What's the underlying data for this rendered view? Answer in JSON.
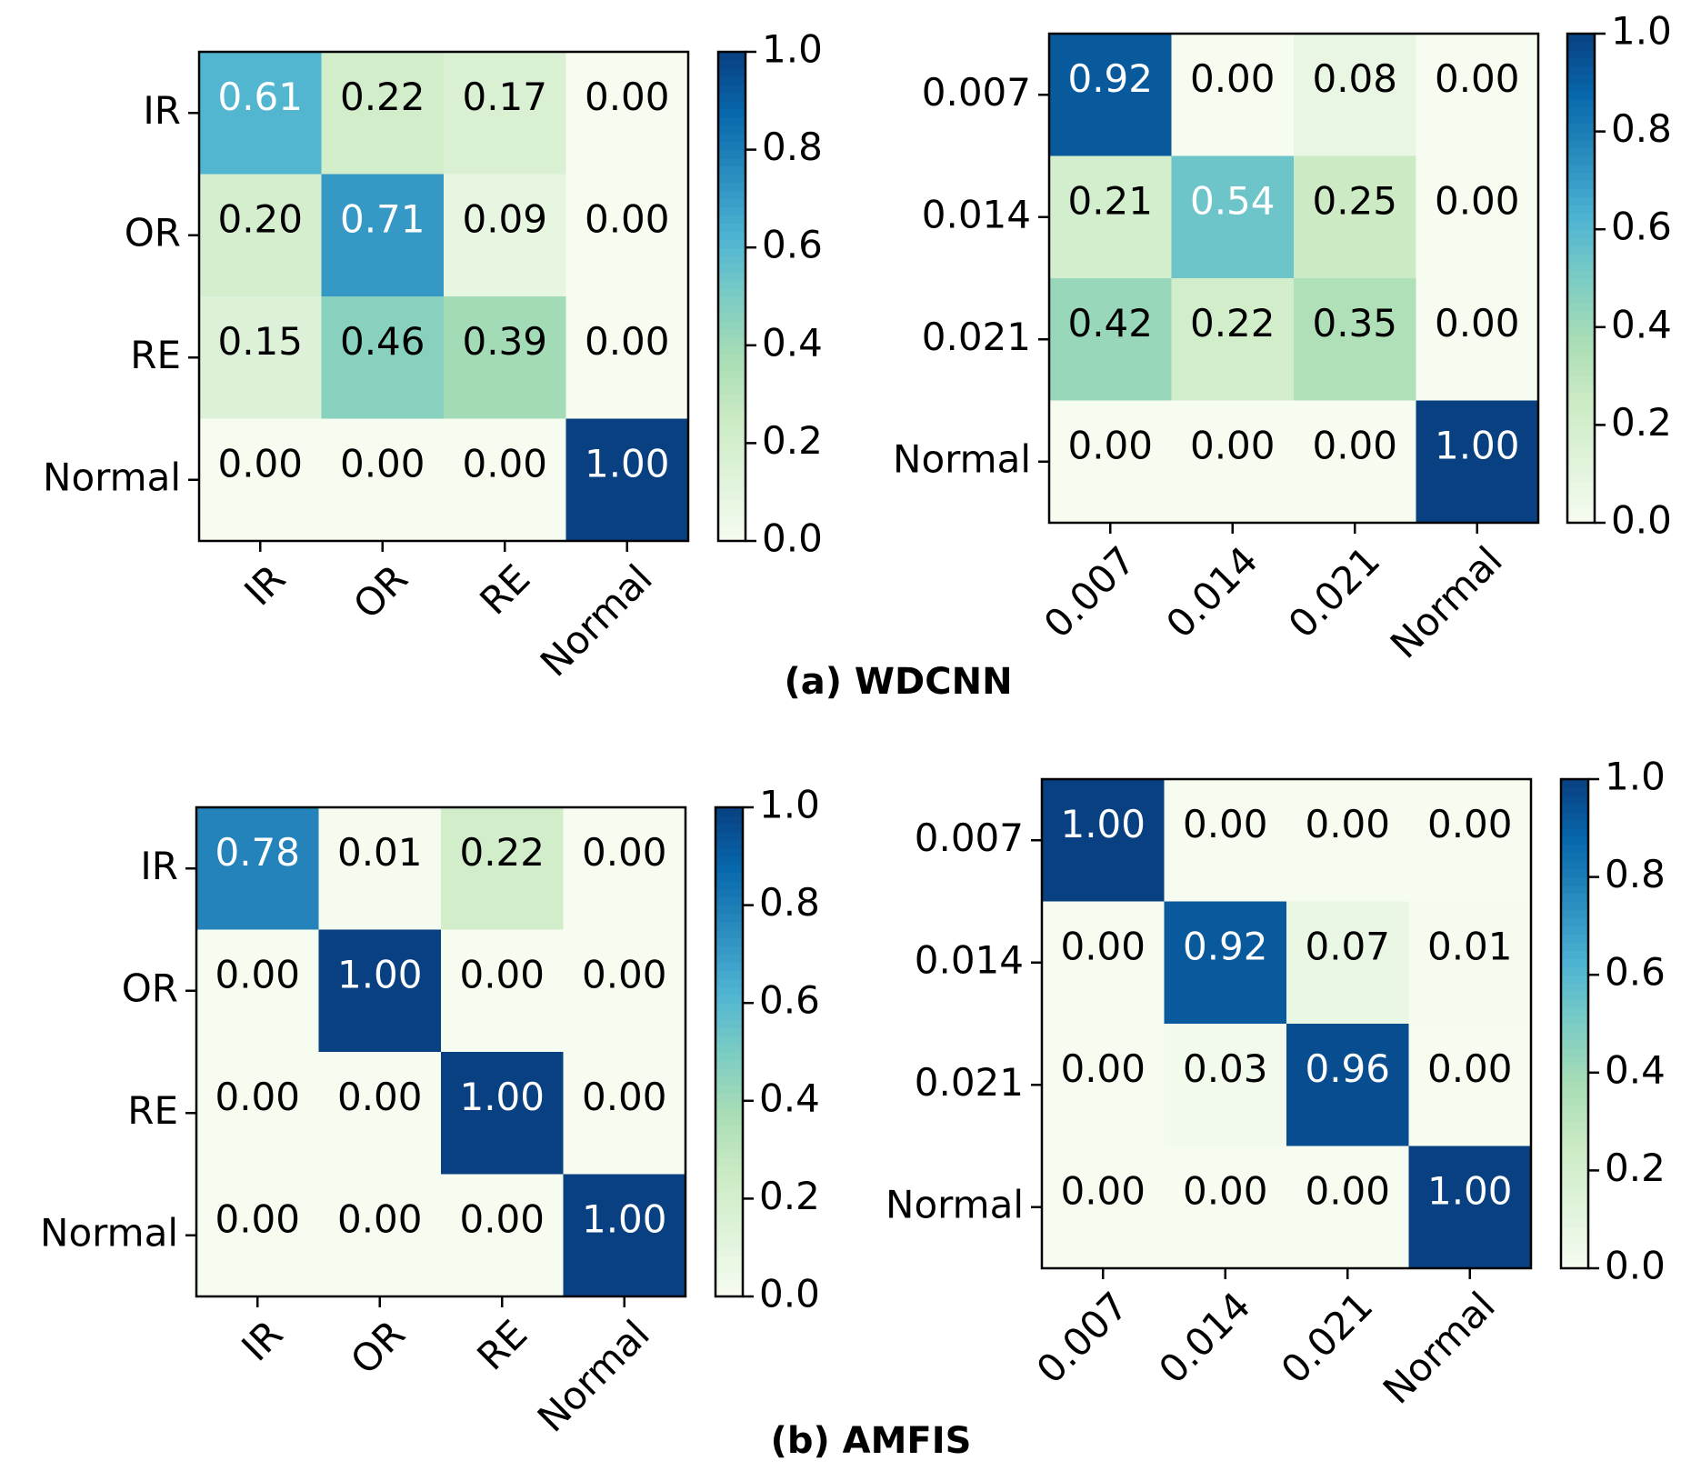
{
  "colors": {
    "cmap_stops": [
      "#f7fcf0",
      "#e0f3db",
      "#ccebc5",
      "#a8ddb5",
      "#7bccc4",
      "#4eb3d3",
      "#2b8cbe",
      "#0868ac",
      "#084081"
    ],
    "text_on_dark": "#ffffff",
    "text_on_light": "#000000",
    "axis": "#000000"
  },
  "captions": [
    "(a) WDCNN",
    "(b) AMFIS"
  ],
  "chart_data": [
    {
      "type": "heatmap",
      "panel": "a-left",
      "x_categories": [
        "IR",
        "OR",
        "RE",
        "Normal"
      ],
      "y_categories": [
        "IR",
        "OR",
        "RE",
        "Normal"
      ],
      "values": [
        [
          0.61,
          0.22,
          0.17,
          0.0
        ],
        [
          0.2,
          0.71,
          0.09,
          0.0
        ],
        [
          0.15,
          0.46,
          0.39,
          0.0
        ],
        [
          0.0,
          0.0,
          0.0,
          1.0
        ]
      ],
      "colorbar_range": [
        0.0,
        1.0
      ],
      "colorbar_ticks": [
        "0.0",
        "0.2",
        "0.4",
        "0.6",
        "0.8",
        "1.0"
      ]
    },
    {
      "type": "heatmap",
      "panel": "a-right",
      "x_categories": [
        "0.007",
        "0.014",
        "0.021",
        "Normal"
      ],
      "y_categories": [
        "0.007",
        "0.014",
        "0.021",
        "Normal"
      ],
      "values": [
        [
          0.92,
          0.0,
          0.08,
          0.0
        ],
        [
          0.21,
          0.54,
          0.25,
          0.0
        ],
        [
          0.42,
          0.22,
          0.35,
          0.0
        ],
        [
          0.0,
          0.0,
          0.0,
          1.0
        ]
      ],
      "colorbar_range": [
        0.0,
        1.0
      ],
      "colorbar_ticks": [
        "0.0",
        "0.2",
        "0.4",
        "0.6",
        "0.8",
        "1.0"
      ]
    },
    {
      "type": "heatmap",
      "panel": "b-left",
      "x_categories": [
        "IR",
        "OR",
        "RE",
        "Normal"
      ],
      "y_categories": [
        "IR",
        "OR",
        "RE",
        "Normal"
      ],
      "values": [
        [
          0.78,
          0.01,
          0.22,
          0.0
        ],
        [
          0.0,
          1.0,
          0.0,
          0.0
        ],
        [
          0.0,
          0.0,
          1.0,
          0.0
        ],
        [
          0.0,
          0.0,
          0.0,
          1.0
        ]
      ],
      "colorbar_range": [
        0.0,
        1.0
      ],
      "colorbar_ticks": [
        "0.0",
        "0.2",
        "0.4",
        "0.6",
        "0.8",
        "1.0"
      ]
    },
    {
      "type": "heatmap",
      "panel": "b-right",
      "x_categories": [
        "0.007",
        "0.014",
        "0.021",
        "Normal"
      ],
      "y_categories": [
        "0.007",
        "0.014",
        "0.021",
        "Normal"
      ],
      "values": [
        [
          1.0,
          0.0,
          0.0,
          0.0
        ],
        [
          0.0,
          0.92,
          0.07,
          0.01
        ],
        [
          0.0,
          0.03,
          0.96,
          0.0
        ],
        [
          0.0,
          0.0,
          0.0,
          1.0
        ]
      ],
      "colorbar_range": [
        0.0,
        1.0
      ],
      "colorbar_ticks": [
        "0.0",
        "0.2",
        "0.4",
        "0.6",
        "0.8",
        "1.0"
      ]
    }
  ]
}
